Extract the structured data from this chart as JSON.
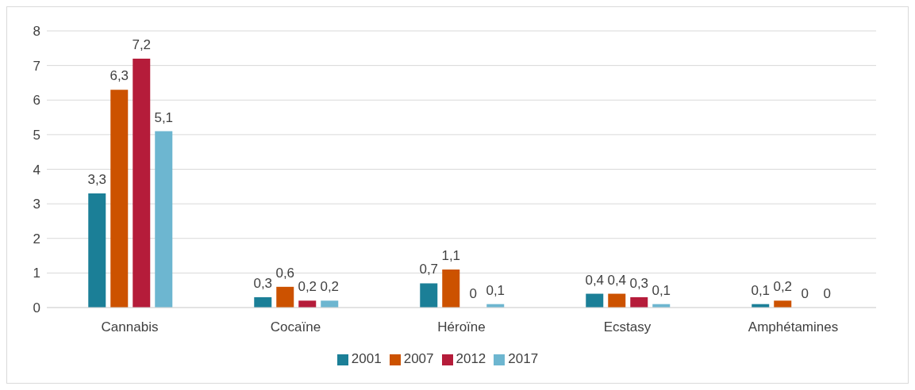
{
  "chart_data": {
    "type": "bar",
    "categories": [
      "Cannabis",
      "Cocaïne",
      "Héroïne",
      "Ecstasy",
      "Amphétamines"
    ],
    "series": [
      {
        "name": "2001",
        "color": "#1b7f97",
        "values": [
          3.3,
          0.3,
          0.7,
          0.4,
          0.1
        ],
        "value_labels": [
          "3,3",
          "0,3",
          "0,7",
          "0,4",
          "0,1"
        ]
      },
      {
        "name": "2007",
        "color": "#cc5200",
        "values": [
          6.3,
          0.6,
          1.1,
          0.4,
          0.2
        ],
        "value_labels": [
          "6,3",
          "0,6",
          "1,1",
          "0,4",
          "0,2"
        ]
      },
      {
        "name": "2012",
        "color": "#b51c3a",
        "values": [
          7.2,
          0.2,
          0,
          0.3,
          0
        ],
        "value_labels": [
          "7,2",
          "0,2",
          "0",
          "0,3",
          "0"
        ]
      },
      {
        "name": "2017",
        "color": "#6db6d0",
        "values": [
          5.1,
          0.2,
          0.1,
          0.1,
          0
        ],
        "value_labels": [
          "5,1",
          "0,2",
          "0,1",
          "0,1",
          "0"
        ]
      }
    ],
    "ylim": [
      0,
      8
    ],
    "yticks": [
      0,
      1,
      2,
      3,
      4,
      5,
      6,
      7,
      8
    ],
    "grid": "y",
    "legend": "bottom"
  }
}
